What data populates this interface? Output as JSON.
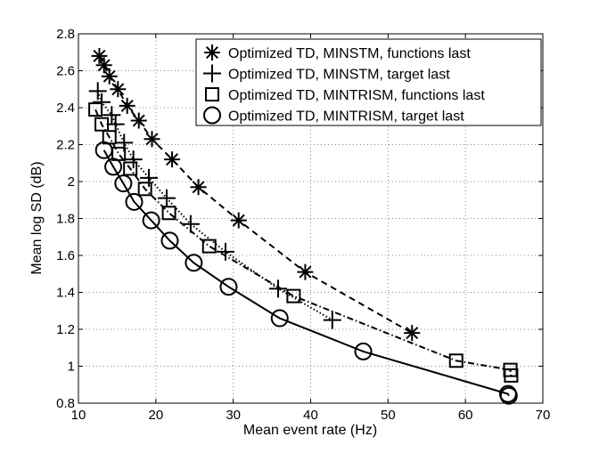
{
  "chart_data": {
    "type": "line",
    "title": "",
    "xlabel": "Mean event rate (Hz)",
    "ylabel": "Mean log SD (dB)",
    "xlim": [
      10,
      70
    ],
    "ylim": [
      0.8,
      2.8
    ],
    "xticks": [
      10,
      20,
      30,
      40,
      50,
      60,
      70
    ],
    "yticks": [
      0.8,
      1,
      1.2,
      1.4,
      1.6,
      1.8,
      2,
      2.2,
      2.4,
      2.6,
      2.8
    ],
    "xtick_labels": [
      "10",
      "20",
      "30",
      "40",
      "50",
      "60",
      "70"
    ],
    "ytick_labels": [
      "0.8",
      "1",
      "1.2",
      "1.4",
      "1.6",
      "1.8",
      "2",
      "2.2",
      "2.4",
      "2.6",
      "2.8"
    ],
    "grid": true,
    "legend_position": "top-right",
    "series": [
      {
        "name": "Optimized TD, MINSTM, functions last",
        "marker": "asterisk",
        "line": "dashed",
        "x": [
          12.7,
          13.3,
          14.0,
          15.1,
          16.3,
          17.8,
          19.5,
          22.1,
          25.5,
          30.7,
          39.3,
          53.1
        ],
        "y": [
          2.68,
          2.63,
          2.57,
          2.5,
          2.41,
          2.33,
          2.23,
          2.12,
          1.97,
          1.79,
          1.51,
          1.18
        ]
      },
      {
        "name": "Optimized TD, MINSTM, target last",
        "marker": "plus",
        "line": "dotted",
        "x": [
          12.5,
          13.0,
          14.3,
          14.8,
          15.9,
          17.1,
          19.1,
          21.4,
          24.5,
          29.0,
          35.8,
          42.8
        ],
        "y": [
          2.49,
          2.43,
          2.36,
          2.31,
          2.21,
          2.12,
          2.02,
          1.91,
          1.77,
          1.62,
          1.42,
          1.25
        ]
      },
      {
        "name": "Optimized TD, MINTRISM, functions last",
        "marker": "square",
        "line": "dashdot",
        "x": [
          12.2,
          13.0,
          14.0,
          15.2,
          16.7,
          18.6,
          21.7,
          26.9,
          37.8,
          58.8,
          65.8,
          65.9
        ],
        "y": [
          2.39,
          2.31,
          2.24,
          2.15,
          2.07,
          1.96,
          1.83,
          1.65,
          1.38,
          1.03,
          0.98,
          0.95
        ]
      },
      {
        "name": "Optimized TD, MINTRISM, target last",
        "marker": "circle",
        "line": "solid",
        "x": [
          13.3,
          14.5,
          15.8,
          17.2,
          19.4,
          21.8,
          24.9,
          29.4,
          36.0,
          46.8,
          65.5,
          65.6
        ],
        "y": [
          2.17,
          2.08,
          1.99,
          1.89,
          1.79,
          1.68,
          1.56,
          1.43,
          1.26,
          1.08,
          0.85,
          0.84
        ]
      }
    ]
  }
}
